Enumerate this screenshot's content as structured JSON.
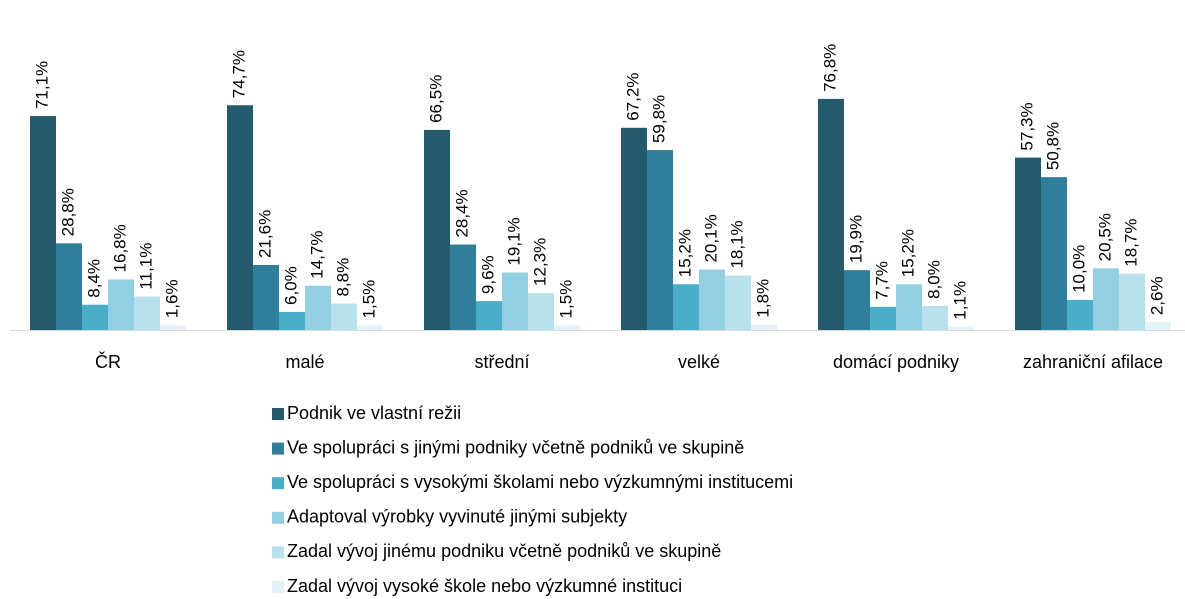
{
  "chart_data": {
    "type": "bar",
    "categories": [
      "ČR",
      "malé",
      "střední",
      "velké",
      "domácí podniky",
      "zahraniční afilace"
    ],
    "ylim": [
      0,
      110
    ],
    "series": [
      {
        "name": "Podnik ve vlastní režii",
        "color": "#245a6b",
        "values": [
          71.1,
          74.7,
          66.5,
          67.2,
          76.8,
          57.3
        ],
        "value_labels": [
          "71,1%",
          "74,7%",
          "66,5%",
          "67,2%",
          "76,8%",
          "57,3%"
        ]
      },
      {
        "name": "Ve spolupráci s jinými podniky včetně podniků ve skupině",
        "color": "#2f7f9a",
        "values": [
          28.8,
          21.6,
          28.4,
          59.8,
          19.9,
          50.8
        ],
        "value_labels": [
          "28,8%",
          "21,6%",
          "28,4%",
          "59,8%",
          "19,9%",
          "50,8%"
        ]
      },
      {
        "name": "Ve spolupráci s vysokými školami nebo výzkumnými institucemi",
        "color": "#4aaec9",
        "values": [
          8.4,
          6.0,
          9.6,
          15.2,
          7.7,
          10.0
        ],
        "value_labels": [
          "8,4%",
          "6,0%",
          "9,6%",
          "15,2%",
          "7,7%",
          "10,0%"
        ]
      },
      {
        "name": "Adaptoval výrobky vyvinuté jinými subjekty",
        "color": "#93cfe0",
        "values": [
          16.8,
          14.7,
          19.1,
          20.1,
          15.2,
          20.5
        ],
        "value_labels": [
          "16,8%",
          "14,7%",
          "19,1%",
          "20,1%",
          "15,2%",
          "20,5%"
        ]
      },
      {
        "name": "Zadal vývoj jinému podniku včetně podniků ve skupině",
        "color": "#b9e1ec",
        "values": [
          11.1,
          8.8,
          12.3,
          18.1,
          8.0,
          18.7
        ],
        "value_labels": [
          "11,1%",
          "8,8%",
          "12,3%",
          "18,1%",
          "8,0%",
          "18,7%"
        ]
      },
      {
        "name": "Zadal vývoj vysoké škole  nebo výzkumné instituci",
        "color": "#e2f2f7",
        "values": [
          1.6,
          1.5,
          1.5,
          1.8,
          1.1,
          2.6
        ],
        "value_labels": [
          "1,6%",
          "1,5%",
          "1,5%",
          "1,8%",
          "1,1%",
          "2,6%"
        ]
      }
    ]
  }
}
